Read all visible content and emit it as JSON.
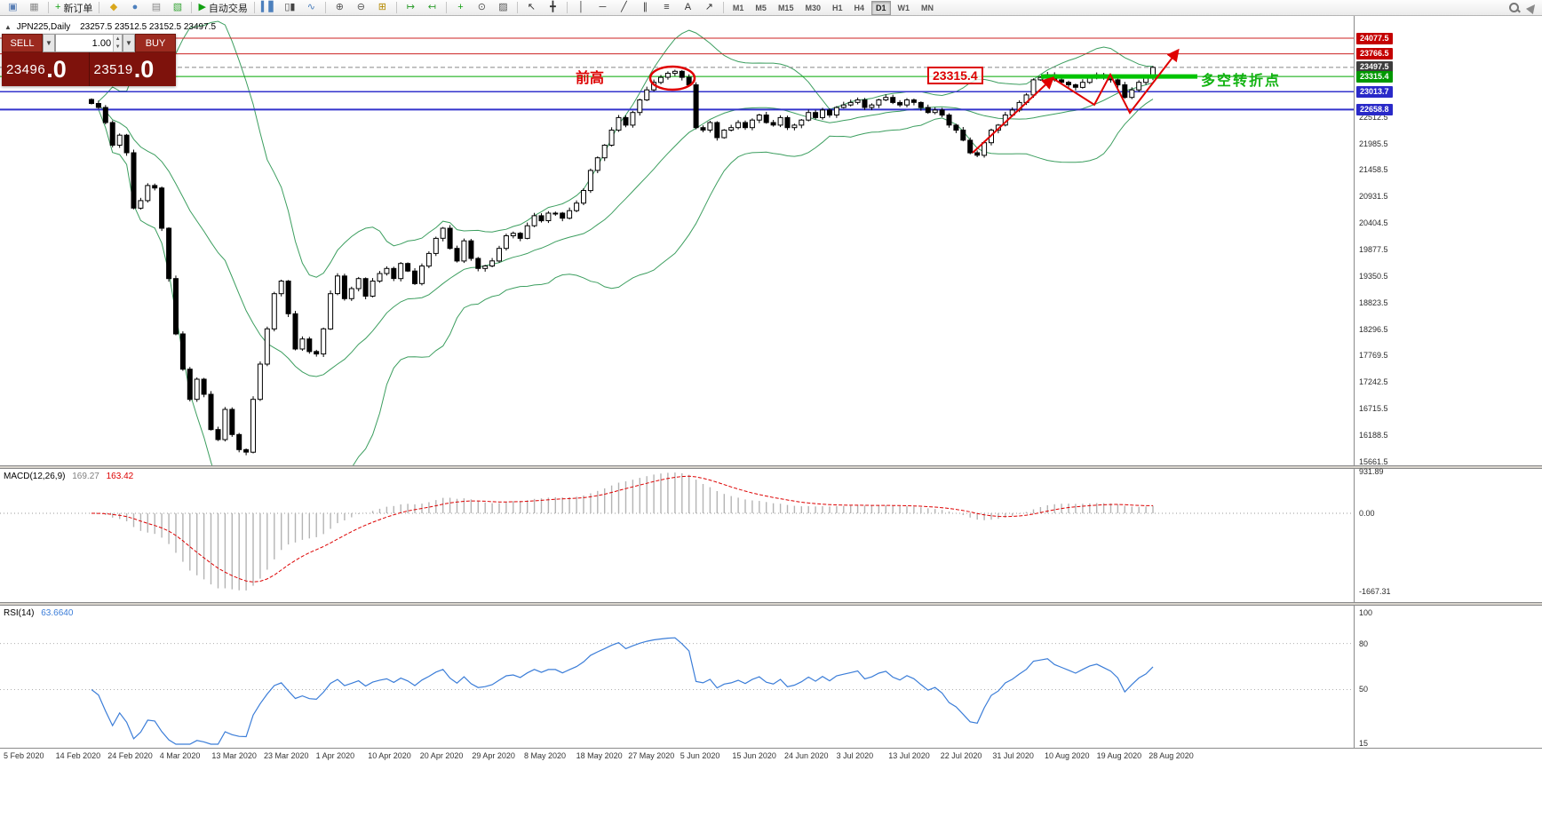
{
  "toolbar": {
    "groups": [
      {
        "items": [
          {
            "name": "new-chart-icon",
            "glyph": "▣",
            "color": "#5a7fb5"
          },
          {
            "name": "profiles-icon",
            "glyph": "▦",
            "color": "#8a8a8a"
          }
        ]
      },
      {
        "items": [
          {
            "name": "new-order-button",
            "glyph": "+",
            "color": "#12a012",
            "label": "新订单"
          }
        ]
      },
      {
        "items": [
          {
            "name": "market-watch-icon",
            "glyph": "◆",
            "color": "#d9a71c"
          },
          {
            "name": "navigator-icon",
            "glyph": "●",
            "color": "#4d80bd"
          },
          {
            "name": "terminal-icon",
            "glyph": "▤",
            "color": "#8a8a8a"
          },
          {
            "name": "strategy-tester-icon",
            "glyph": "▧",
            "color": "#3aa63a"
          }
        ]
      },
      {
        "items": [
          {
            "name": "autotrade-button",
            "glyph": "▶",
            "color": "#12a012",
            "label": "自动交易"
          }
        ]
      },
      {
        "items": [
          {
            "name": "bar-chart-icon",
            "glyph": "▍▋",
            "color": "#4d80bd"
          },
          {
            "name": "candlestick-chart-icon",
            "glyph": "▯▮",
            "color": "#444444"
          },
          {
            "name": "line-chart-icon",
            "glyph": "∿",
            "color": "#4d80bd"
          }
        ]
      },
      {
        "items": [
          {
            "name": "zoom-in-icon",
            "glyph": "⊕",
            "color": "#555555"
          },
          {
            "name": "zoom-out-icon",
            "glyph": "⊖",
            "color": "#555555"
          },
          {
            "name": "tile-windows-icon",
            "glyph": "⊞",
            "color": "#b58900"
          }
        ]
      },
      {
        "items": [
          {
            "name": "auto-scroll-icon",
            "glyph": "↦",
            "color": "#2f9e2f"
          },
          {
            "name": "chart-shift-icon",
            "glyph": "↤",
            "color": "#2f9e2f"
          }
        ]
      },
      {
        "items": [
          {
            "name": "indicators-icon",
            "glyph": "+",
            "color": "#12a012"
          },
          {
            "name": "periods-icon",
            "glyph": "⊙",
            "color": "#555555"
          },
          {
            "name": "templates-icon",
            "glyph": "▨",
            "color": "#555555"
          }
        ]
      },
      {
        "items": [
          {
            "name": "cursor-icon",
            "glyph": "↖",
            "color": "#333333"
          },
          {
            "name": "crosshair-icon",
            "glyph": "╋",
            "color": "#333333"
          }
        ]
      },
      {
        "items": [
          {
            "name": "vline-icon",
            "glyph": "│",
            "color": "#333333"
          },
          {
            "name": "hline-icon",
            "glyph": "─",
            "color": "#333333"
          },
          {
            "name": "trendline-icon",
            "glyph": "╱",
            "color": "#333333"
          },
          {
            "name": "channel-icon",
            "glyph": "∥",
            "color": "#333333"
          },
          {
            "name": "fibonacci-icon",
            "glyph": "≡",
            "color": "#333333"
          },
          {
            "name": "text-icon",
            "glyph": "A",
            "color": "#333333"
          },
          {
            "name": "arrows-icon",
            "glyph": "↗",
            "color": "#333333"
          }
        ]
      }
    ],
    "timeframes": [
      "M1",
      "M5",
      "M15",
      "M30",
      "H1",
      "H4",
      "D1",
      "W1",
      "MN"
    ],
    "active_timeframe": "D1"
  },
  "chart_header": {
    "symbol": "JPN225,Daily",
    "ohlc": "23257.5 23512.5 23152.5 23497.5",
    "collapse_icon": "▲"
  },
  "trade_panel": {
    "sell_label": "SELL",
    "buy_label": "BUY",
    "volume": "1.00",
    "sell_price_main": "23496",
    "sell_price_frac": ".0",
    "buy_price_main": "23519",
    "buy_price_frac": ".0"
  },
  "annotations": {
    "prev_high_label": "前高",
    "level_box_label": "23315.4",
    "turning_point_label": "多空转折点"
  },
  "chart_data": {
    "type": "candlestick",
    "symbol": "JPN225",
    "timeframe": "Daily",
    "x_labels": [
      "5 Feb 2020",
      "14 Feb 2020",
      "24 Feb 2020",
      "4 Mar 2020",
      "13 Mar 2020",
      "23 Mar 2020",
      "1 Apr 2020",
      "10 Apr 2020",
      "20 Apr 2020",
      "29 Apr 2020",
      "8 May 2020",
      "18 May 2020",
      "27 May 2020",
      "5 Jun 2020",
      "15 Jun 2020",
      "24 Jun 2020",
      "3 Jul 2020",
      "13 Jul 2020",
      "22 Jul 2020",
      "31 Jul 2020",
      "10 Aug 2020",
      "19 Aug 2020",
      "28 Aug 2020"
    ],
    "closes": [
      22780,
      22700,
      22400,
      21950,
      22150,
      21800,
      20700,
      20850,
      21150,
      21100,
      20300,
      19300,
      18200,
      17500,
      16900,
      17300,
      17000,
      16300,
      16100,
      16700,
      16200,
      15900,
      15850,
      16900,
      17600,
      18300,
      19000,
      19250,
      18600,
      17900,
      18100,
      17850,
      17800,
      18300,
      19000,
      19350,
      18900,
      19100,
      19300,
      18950,
      19250,
      19400,
      19500,
      19300,
      19600,
      19450,
      19200,
      19550,
      19800,
      20100,
      20300,
      19900,
      19650,
      20050,
      19700,
      19500,
      19550,
      19650,
      19900,
      20150,
      20200,
      20100,
      20350,
      20550,
      20450,
      20600,
      20600,
      20500,
      20650,
      20800,
      21050,
      21450,
      21700,
      21950,
      22250,
      22500,
      22350,
      22600,
      22850,
      23050,
      23200,
      23300,
      23380,
      23420,
      23300,
      23150,
      22300,
      22250,
      22400,
      22100,
      22250,
      22300,
      22400,
      22300,
      22450,
      22550,
      22400,
      22350,
      22500,
      22300,
      22350,
      22450,
      22600,
      22500,
      22650,
      22550,
      22700,
      22750,
      22800,
      22850,
      22700,
      22750,
      22850,
      22900,
      22800,
      22750,
      22850,
      22800,
      22700,
      22600,
      22650,
      22550,
      22350,
      22250,
      22050,
      21800,
      21750,
      22000,
      22250,
      22350,
      22550,
      22650,
      22800,
      22950,
      23250,
      23300,
      23350,
      23250,
      23200,
      23150,
      23100,
      23200,
      23300,
      23350,
      23300,
      23250,
      23150,
      22900,
      23050,
      23200,
      23300,
      23497.5
    ],
    "levels": [
      {
        "label": "24077.5",
        "v": 24077.5,
        "line": "#cc2222",
        "box": "#c40000",
        "style": "solid",
        "w": 1
      },
      {
        "label": "23766.5",
        "v": 23766.5,
        "line": "#cc2222",
        "box": "#c40000",
        "style": "solid",
        "w": 1
      },
      {
        "label": "23497.5",
        "v": 23497.5,
        "line": "#888888",
        "box": "#3d3d3d",
        "style": "dash",
        "w": 1
      },
      {
        "label": "23315.4",
        "v": 23315.4,
        "line": "#00a800",
        "box": "#009800",
        "style": "solid",
        "w": 1
      },
      {
        "label": "23013.7",
        "v": 23013.7,
        "line": "#3333cc",
        "box": "#2929c8",
        "style": "solid",
        "w": 1.5
      },
      {
        "label": "22658.8",
        "v": 22658.8,
        "line": "#3333cc",
        "box": "#2929c8",
        "style": "solid",
        "w": 2
      }
    ],
    "y_ticks": [
      "22512.5",
      "21985.5",
      "21458.5",
      "20931.5",
      "20404.5",
      "19877.5",
      "19350.5",
      "18823.5",
      "18296.5",
      "17769.5",
      "17242.5",
      "16715.5",
      "16188.5",
      "15661.5"
    ],
    "bollinger": {
      "period": 20,
      "deviation": 2,
      "color": "#3c9e5f"
    },
    "macd": {
      "title": "MACD(12,26,9)",
      "value_main": "169.27",
      "value_signal": "163.42",
      "fast": 12,
      "slow": 26,
      "signal": 9,
      "ticks": [
        {
          "label": "931.89",
          "v": 931.89
        },
        {
          "label": "0.00",
          "v": 0
        },
        {
          "label": "-1667.31",
          "v": -1667.31
        }
      ]
    },
    "rsi": {
      "title": "RSI(14)",
      "value": "63.6640",
      "period": 14,
      "ticks": [
        {
          "label": "100",
          "v": 100
        },
        {
          "label": "80",
          "v": 80
        },
        {
          "label": "50",
          "v": 50
        },
        {
          "label": "15",
          "v": 15
        }
      ]
    }
  }
}
